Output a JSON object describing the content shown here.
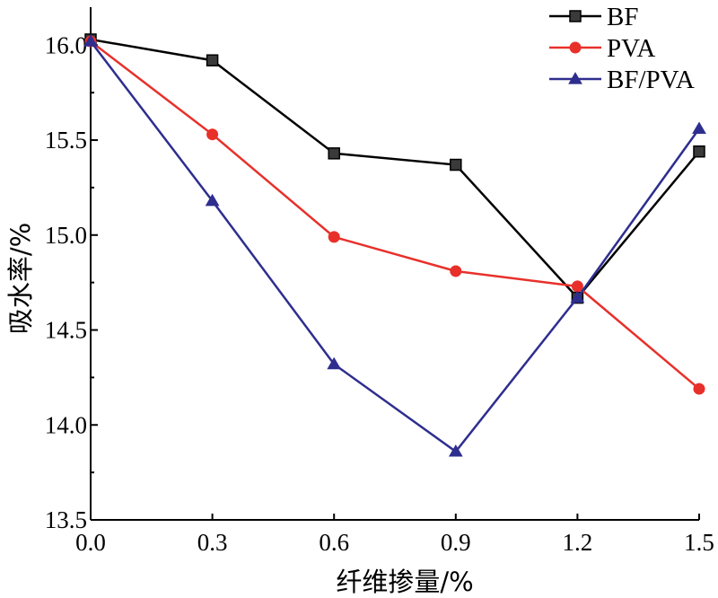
{
  "chart_data": {
    "type": "line",
    "title": "",
    "xlabel": "纤维掺量/%",
    "ylabel": "吸水率/%",
    "x": [
      0.0,
      0.3,
      0.6,
      0.9,
      1.2,
      1.5
    ],
    "x_tick_labels": [
      "0.0",
      "0.3",
      "0.6",
      "0.9",
      "1.2",
      "1.5"
    ],
    "y_tick_labels": [
      "13.5",
      "14.0",
      "14.5",
      "15.0",
      "15.5",
      "16.0"
    ],
    "y_ticks": [
      13.5,
      14.0,
      14.5,
      15.0,
      15.5,
      16.0
    ],
    "xlim": [
      0.0,
      1.5
    ],
    "ylim": [
      13.5,
      16.2
    ],
    "grid": false,
    "legend_position": "top-right",
    "series": [
      {
        "name": "BF",
        "values": [
          16.03,
          15.92,
          15.43,
          15.37,
          14.67,
          15.44
        ],
        "color": "#000000",
        "marker": "square"
      },
      {
        "name": "PVA",
        "values": [
          16.02,
          15.53,
          14.99,
          14.81,
          14.73,
          14.19
        ],
        "color": "#e8302a",
        "marker": "circle"
      },
      {
        "name": "BF/PVA",
        "values": [
          16.02,
          15.18,
          14.32,
          13.86,
          14.67,
          15.56
        ],
        "color": "#2e2e8f",
        "marker": "triangle"
      }
    ]
  }
}
